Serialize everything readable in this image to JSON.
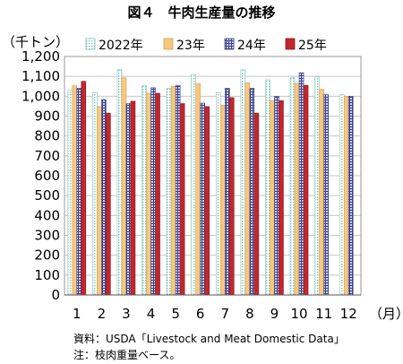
{
  "title": "図４　牛肉生産量の推移",
  "chart_data": {
    "type": "bar",
    "ylabel": "（千トン）",
    "xlabel": "（月）",
    "ylim": [
      0,
      1200
    ],
    "ytick_step": 100,
    "grid": true,
    "legend": "top",
    "categories": [
      "1",
      "2",
      "3",
      "4",
      "5",
      "6",
      "7",
      "8",
      "9",
      "10",
      "11",
      "12"
    ],
    "series": [
      {
        "name": "2022年",
        "pattern": "dots",
        "color": "#9fd0cc",
        "values": [
          1030,
          1018,
          1135,
          1053,
          1040,
          1110,
          1018,
          1133,
          1083,
          1093,
          1098,
          1008
        ]
      },
      {
        "name": "23年",
        "pattern": "solid",
        "color": "#f6c87f",
        "values": [
          1053,
          948,
          1093,
          1015,
          1050,
          1063,
          955,
          1068,
          978,
          1065,
          1035,
          1000
        ]
      },
      {
        "name": "24年",
        "pattern": "grid",
        "color": "#5a5f9e",
        "values": [
          1040,
          983,
          963,
          1043,
          1055,
          965,
          1040,
          1040,
          1000,
          1118,
          1008,
          1000
        ]
      },
      {
        "name": "25年",
        "pattern": "solid",
        "color": "#c1272d",
        "values": [
          1075,
          915,
          975,
          1015,
          963,
          948,
          993,
          915,
          978,
          1055,
          null,
          null
        ]
      }
    ]
  },
  "notes": {
    "source": "資料：USDA「Livestock and Meat Domestic Data」",
    "remark": "注：枝肉重量ベース。"
  }
}
